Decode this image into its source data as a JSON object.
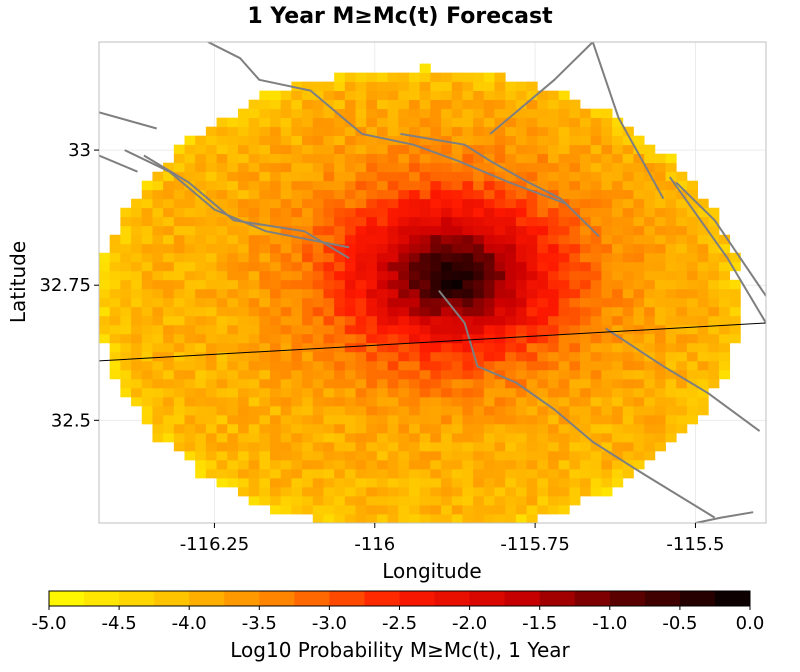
{
  "chart_data": {
    "type": "heatmap",
    "title": "1 Year M≥Mc(t) Forecast",
    "xlabel": "Longitude",
    "ylabel": "Latitude",
    "xlim": [
      -116.43,
      -115.39
    ],
    "ylim": [
      32.31,
      33.2
    ],
    "x_ticks": [
      -116.25,
      -116,
      -115.75,
      -115.5
    ],
    "y_ticks": [
      32.5,
      32.75,
      33
    ],
    "x_tick_labels": [
      "-116.25",
      "-116",
      "-115.75",
      "-115.5"
    ],
    "y_tick_labels": [
      "32.5",
      "32.75",
      "33"
    ],
    "grid": true,
    "grid_spacing_deg": 0.0166667,
    "region": {
      "center_lon": -115.93,
      "center_lat": 32.72,
      "radius_lon": 0.5,
      "radius_lat": 0.43
    },
    "peak": {
      "lon": -115.88,
      "lat": 32.77,
      "value": -0.05
    },
    "value_profile": {
      "background": -4.0,
      "rim": -4.4,
      "peak": -0.05
    },
    "colorbar": {
      "label": "Log10 Probability M≥Mc(t), 1 Year",
      "min": -5.0,
      "max": 0.0,
      "ticks": [
        "-5.0",
        "-4.5",
        "-4.0",
        "-3.5",
        "-3.0",
        "-2.5",
        "-2.0",
        "-1.5",
        "-1.0",
        "-0.5",
        "0.0"
      ],
      "colors": [
        "#ffff00",
        "#ffc800",
        "#ff8000",
        "#ff1a00",
        "#cc0000",
        "#550000",
        "#000000"
      ]
    },
    "faults": [
      [
        [
          -116.26,
          33.2
        ],
        [
          -116.21,
          33.17
        ],
        [
          -116.18,
          33.13
        ],
        [
          -116.1,
          33.11
        ],
        [
          -116.05,
          33.06
        ],
        [
          -116.02,
          33.03
        ],
        [
          -115.94,
          33.01
        ],
        [
          -115.87,
          32.98
        ],
        [
          -115.79,
          32.94
        ],
        [
          -115.7,
          32.9
        ]
      ],
      [
        [
          -115.96,
          33.03
        ],
        [
          -115.86,
          33.01
        ],
        [
          -115.82,
          32.98
        ],
        [
          -115.76,
          32.94
        ],
        [
          -115.71,
          32.91
        ],
        [
          -115.65,
          32.84
        ]
      ],
      [
        [
          -115.82,
          33.03
        ],
        [
          -115.72,
          33.13
        ],
        [
          -115.66,
          33.2
        ]
      ],
      [
        [
          -115.66,
          33.2
        ],
        [
          -115.62,
          33.06
        ],
        [
          -115.55,
          32.91
        ]
      ],
      [
        [
          -116.43,
          33.07
        ],
        [
          -116.34,
          33.04
        ]
      ],
      [
        [
          -116.43,
          32.99
        ],
        [
          -116.37,
          32.96
        ]
      ],
      [
        [
          -116.36,
          32.99
        ],
        [
          -116.29,
          32.94
        ],
        [
          -116.22,
          32.87
        ],
        [
          -116.11,
          32.85
        ],
        [
          -116.04,
          32.8
        ]
      ],
      [
        [
          -116.39,
          33.0
        ],
        [
          -116.32,
          32.96
        ],
        [
          -116.25,
          32.89
        ],
        [
          -116.17,
          32.85
        ],
        [
          -116.04,
          32.82
        ]
      ],
      [
        [
          -115.9,
          32.74
        ],
        [
          -115.86,
          32.68
        ],
        [
          -115.84,
          32.6
        ],
        [
          -115.78,
          32.57
        ],
        [
          -115.72,
          32.52
        ],
        [
          -115.66,
          32.46
        ],
        [
          -115.58,
          32.4
        ],
        [
          -115.47,
          32.32
        ]
      ],
      [
        [
          -115.54,
          32.95
        ],
        [
          -115.51,
          32.9
        ],
        [
          -115.45,
          32.8
        ],
        [
          -115.39,
          32.68
        ]
      ],
      [
        [
          -115.53,
          32.94
        ],
        [
          -115.47,
          32.87
        ],
        [
          -115.39,
          32.73
        ]
      ],
      [
        [
          -115.64,
          32.67
        ],
        [
          -115.55,
          32.6
        ],
        [
          -115.48,
          32.55
        ],
        [
          -115.4,
          32.48
        ]
      ],
      [
        [
          -115.5,
          32.31
        ],
        [
          -115.46,
          32.32
        ],
        [
          -115.41,
          32.33
        ]
      ]
    ],
    "border": [
      [
        -116.43,
        32.61
      ],
      [
        -115.39,
        32.68
      ]
    ]
  }
}
